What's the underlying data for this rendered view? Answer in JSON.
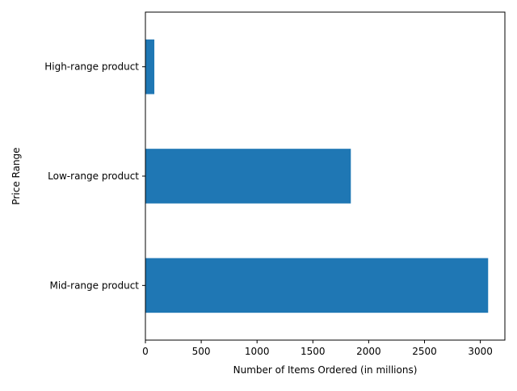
{
  "chart_data": {
    "type": "bar",
    "orientation": "horizontal",
    "title": "",
    "xlabel": "Number of Items Ordered (in millions)",
    "ylabel": "Price Range",
    "categories": [
      "Mid-range product",
      "Low-range product",
      "High-range product"
    ],
    "values": [
      3070,
      1840,
      80
    ],
    "xlim": [
      0,
      3220
    ],
    "xticks": [
      0,
      500,
      1000,
      1500,
      2000,
      2500,
      3000
    ],
    "bar_color": "#1f77b4",
    "grid": false,
    "legend": "none"
  }
}
